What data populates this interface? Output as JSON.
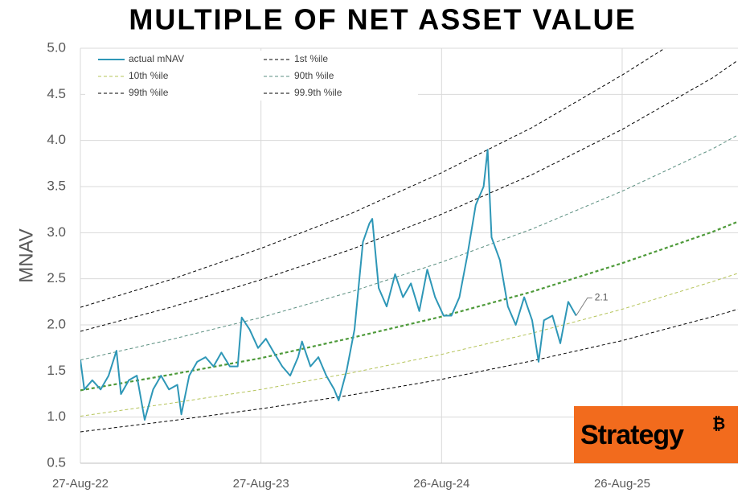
{
  "chart_data": {
    "type": "line",
    "title": "MULTIPLE OF NET ASSET VALUE",
    "y_label": "MNAV",
    "annotation": "2.1",
    "logo_text": "Strategy",
    "logo_symbol": "₿",
    "xlim": [
      "2022-08-27",
      "2026-04-17"
    ],
    "xticks": [
      {
        "value": "2022-08-27",
        "label": "27-Aug-22"
      },
      {
        "value": "2023-08-27",
        "label": "27-Aug-23"
      },
      {
        "value": "2024-08-26",
        "label": "26-Aug-24"
      },
      {
        "value": "2025-08-26",
        "label": "26-Aug-25"
      }
    ],
    "ylim": [
      0.5,
      5
    ],
    "yticks": [
      0.5,
      {
        "value": 1,
        "label": "1.0"
      },
      1.5,
      {
        "value": 2,
        "label": "2.0"
      },
      2.5,
      {
        "value": 3,
        "label": "3.0"
      },
      3.5,
      {
        "value": 4,
        "label": "4.0"
      },
      4.5,
      {
        "value": 5,
        "label": "5.0"
      }
    ],
    "grid": true,
    "legend": "upper left",
    "series": [
      {
        "name": "actual mNAV",
        "color": "#2e97b7",
        "linestyle": "solid",
        "width": 2,
        "x": [
          "2022-08-27",
          "2022-09-04",
          "2022-09-20",
          "2022-10-07",
          "2022-10-23",
          "2022-11-08",
          "2022-11-17",
          "2022-12-03",
          "2022-12-19",
          "2023-01-04",
          "2023-01-21",
          "2023-02-06",
          "2023-02-22",
          "2023-03-11",
          "2023-03-19",
          "2023-04-04",
          "2023-04-20",
          "2023-05-07",
          "2023-05-23",
          "2023-06-08",
          "2023-06-25",
          "2023-07-11",
          "2023-07-19",
          "2023-08-04",
          "2023-08-21",
          "2023-09-06",
          "2023-09-22",
          "2023-10-09",
          "2023-10-25",
          "2023-11-10",
          "2023-11-18",
          "2023-12-05",
          "2023-12-21",
          "2024-01-06",
          "2024-01-22",
          "2024-01-31",
          "2024-02-16",
          "2024-03-03",
          "2024-03-20",
          "2024-04-02",
          "2024-04-08",
          "2024-04-21",
          "2024-05-07",
          "2024-05-24",
          "2024-06-09",
          "2024-06-25",
          "2024-07-12",
          "2024-07-28",
          "2024-08-13",
          "2024-08-30",
          "2024-09-15",
          "2024-10-01",
          "2024-10-17",
          "2024-11-03",
          "2024-11-19",
          "2024-11-27",
          "2024-12-05",
          "2024-12-22",
          "2025-01-07",
          "2025-01-23",
          "2025-02-09",
          "2025-02-25",
          "2025-03-10",
          "2025-03-21",
          "2025-04-07",
          "2025-04-23",
          "2025-05-09",
          "2025-05-25"
        ],
        "values": [
          1.62,
          1.3,
          1.4,
          1.3,
          1.45,
          1.72,
          1.25,
          1.4,
          1.45,
          0.97,
          1.3,
          1.45,
          1.3,
          1.35,
          1.03,
          1.45,
          1.6,
          1.65,
          1.55,
          1.7,
          1.55,
          1.55,
          2.08,
          1.95,
          1.75,
          1.85,
          1.7,
          1.55,
          1.45,
          1.65,
          1.82,
          1.55,
          1.65,
          1.45,
          1.3,
          1.18,
          1.5,
          1.95,
          2.9,
          3.1,
          3.15,
          2.4,
          2.2,
          2.55,
          2.3,
          2.45,
          2.15,
          2.6,
          2.3,
          2.1,
          2.1,
          2.3,
          2.75,
          3.3,
          3.5,
          3.9,
          2.95,
          2.7,
          2.2,
          2.0,
          2.3,
          2.05,
          1.6,
          2.05,
          2.1,
          1.8,
          2.25,
          2.1
        ]
      },
      {
        "name": "1st %ile",
        "color": "#000000",
        "linestyle": "dashed",
        "width": 1,
        "x": [
          "2022-08-27",
          "2023-02-25",
          "2023-08-27",
          "2024-02-26",
          "2024-08-26",
          "2025-02-25",
          "2025-08-26",
          "2026-02-25",
          "2026-04-17"
        ],
        "values": [
          0.84,
          0.96,
          1.09,
          1.24,
          1.41,
          1.61,
          1.83,
          2.09,
          2.17
        ]
      },
      {
        "name": "10th %ile",
        "color": "#b5c45a",
        "linestyle": "dashed",
        "width": 1,
        "x": [
          "2022-08-27",
          "2023-02-25",
          "2023-08-27",
          "2024-02-26",
          "2024-08-26",
          "2025-02-25",
          "2025-08-26",
          "2026-02-25",
          "2026-04-17"
        ],
        "values": [
          1.01,
          1.15,
          1.3,
          1.48,
          1.68,
          1.91,
          2.17,
          2.47,
          2.56
        ]
      },
      {
        "name": "90th %ile",
        "color": "#5b8f80",
        "linestyle": "dashed",
        "width": 1,
        "x": [
          "2022-08-27",
          "2023-02-25",
          "2023-08-27",
          "2024-02-26",
          "2024-08-26",
          "2025-02-25",
          "2025-08-26",
          "2026-02-25",
          "2026-04-17"
        ],
        "values": [
          1.62,
          1.84,
          2.08,
          2.36,
          2.68,
          3.04,
          3.45,
          3.91,
          4.06
        ]
      },
      {
        "name": "99th %ile",
        "color": "#000000",
        "linestyle": "dashed",
        "width": 1,
        "x": [
          "2022-08-27",
          "2023-02-25",
          "2023-08-27",
          "2024-02-26",
          "2024-08-26",
          "2025-02-25",
          "2025-08-26",
          "2026-02-25",
          "2026-04-17"
        ],
        "values": [
          1.93,
          2.19,
          2.49,
          2.82,
          3.2,
          3.63,
          4.12,
          4.68,
          4.87
        ]
      },
      {
        "name": "99.9th %ile",
        "color": "#000000",
        "linestyle": "dashed",
        "width": 1,
        "x": [
          "2022-08-27",
          "2023-02-25",
          "2023-08-27",
          "2024-02-26",
          "2024-08-26",
          "2025-02-25",
          "2025-08-26",
          "2025-11-20"
        ],
        "values": [
          2.19,
          2.49,
          2.83,
          3.21,
          3.65,
          4.14,
          4.71,
          5.0
        ]
      },
      {
        "color": "#4e9a3a",
        "linestyle": "dashed",
        "width": 2.2,
        "x": [
          "2022-08-27",
          "2023-02-25",
          "2023-08-27",
          "2024-02-26",
          "2024-08-26",
          "2025-02-25",
          "2025-08-26",
          "2026-02-25",
          "2026-04-17"
        ],
        "values": [
          1.29,
          1.46,
          1.64,
          1.86,
          2.09,
          2.36,
          2.67,
          3.01,
          3.12
        ]
      }
    ]
  }
}
